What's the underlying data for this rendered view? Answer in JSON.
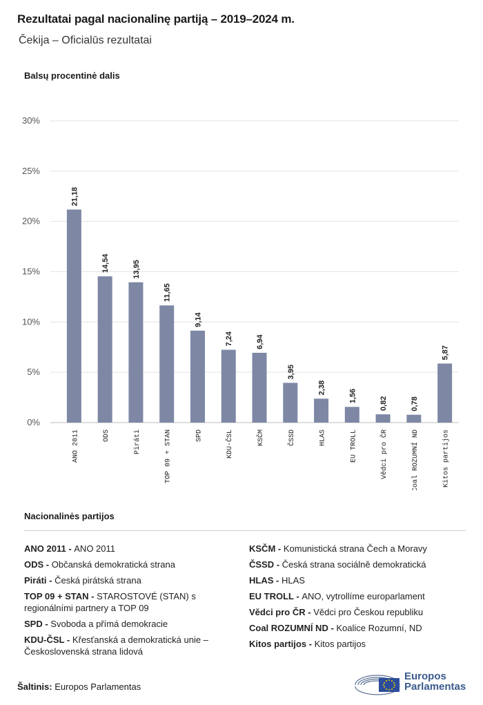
{
  "header": {
    "title": "Rezultatai pagal nacionalinę partiją – 2019–2024 m.",
    "subtitle": "Čekija – Oficialūs rezultatai"
  },
  "chart_data": {
    "type": "bar",
    "ylabel": "Balsų procentinė dalis",
    "categories": [
      "ANO 2011",
      "ODS",
      "Piráti",
      "TOP 09 + STAN",
      "SPD",
      "KDU-ČSL",
      "KSČM",
      "ČSSD",
      "HLAS",
      "EU TROLL",
      "Vědci pro ČR",
      "Coal ROZUMNÍ ND",
      "Kitos partijos"
    ],
    "values": [
      21.18,
      14.54,
      13.95,
      11.65,
      9.14,
      7.24,
      6.94,
      3.95,
      2.38,
      1.56,
      0.82,
      0.78,
      5.87
    ],
    "value_labels": [
      "21,18",
      "14,54",
      "13,95",
      "11,65",
      "9,14",
      "7,24",
      "6,94",
      "3,95",
      "2,38",
      "1,56",
      "0,82",
      "0,78",
      "5,87"
    ],
    "yticks": [
      "0%",
      "5%",
      "10%",
      "15%",
      "20%",
      "25%",
      "30%"
    ],
    "ylim": [
      0,
      30
    ],
    "grid": true,
    "bar_color": "#7e88a5"
  },
  "legend": {
    "title": "Nacionalinės partijos",
    "left": [
      {
        "abbr": "ANO 2011 -",
        "name": "ANO 2011"
      },
      {
        "abbr": "ODS -",
        "name": "Občanská demokratická strana"
      },
      {
        "abbr": "Piráti -",
        "name": "Česká pirátská strana"
      },
      {
        "abbr": "TOP 09 + STAN -",
        "name": "STAROSTOVÉ (STAN) s regionálními partnery a TOP 09"
      },
      {
        "abbr": "SPD -",
        "name": "Svoboda a přímá demokracie"
      },
      {
        "abbr": "KDU-ČSL -",
        "name": "Křesťanská a demokratická unie – Československá strana lidová"
      }
    ],
    "right": [
      {
        "abbr": "KSČM -",
        "name": "Komunistická strana Čech a Moravy"
      },
      {
        "abbr": "ČSSD -",
        "name": "Česká strana sociálně demokratická"
      },
      {
        "abbr": "HLAS -",
        "name": "HLAS"
      },
      {
        "abbr": "EU TROLL -",
        "name": "ANO, vytrollíme europarlament"
      },
      {
        "abbr": "Vědci pro ČR -",
        "name": "Vědci pro Českou republiku"
      },
      {
        "abbr": "Coal ROZUMNÍ ND -",
        "name": "Koalice Rozumní, ND"
      },
      {
        "abbr": "Kitos partijos -",
        "name": "Kitos partijos"
      }
    ]
  },
  "footer": {
    "source_label": "Šaltinis:",
    "source_value": "Europos Parlamentas",
    "logo_line1": "Europos",
    "logo_line2": "Parlamentas"
  }
}
